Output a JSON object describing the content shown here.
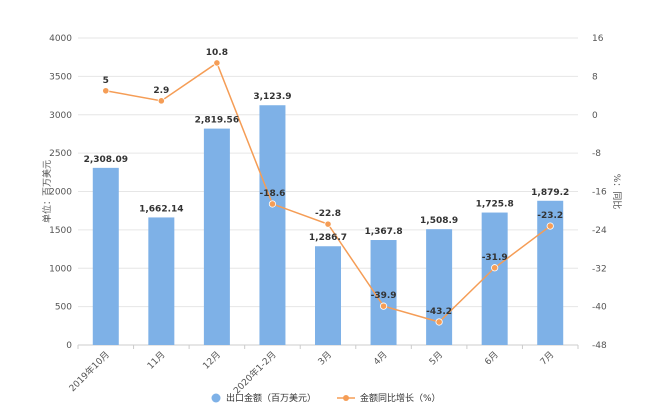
{
  "chart_data": {
    "type": "bar",
    "categories": [
      "2019年10月",
      "11月",
      "12月",
      "2020年1-2月",
      "3月",
      "4月",
      "5月",
      "6月",
      "7月"
    ],
    "series": [
      {
        "name": "出口金额（百万美元）",
        "type": "bar",
        "axis": "left",
        "color": "#7eb1e7",
        "values": [
          2308.09,
          1662.14,
          2819.56,
          3123.9,
          1286.7,
          1367.8,
          1508.9,
          1725.8,
          1879.2
        ],
        "labels": [
          "2,308.09",
          "1,662.14",
          "2,819.56",
          "3,123.9",
          "1,286.7",
          "1,367.8",
          "1,508.9",
          "1,725.8",
          "1,879.2"
        ]
      },
      {
        "name": "金额同比增长（%）",
        "type": "line",
        "axis": "right",
        "color": "#f59d56",
        "values": [
          5,
          2.9,
          10.8,
          -18.6,
          -22.8,
          -39.9,
          -43.2,
          -31.9,
          -23.2
        ],
        "labels": [
          "5",
          "2.9",
          "10.8",
          "-18.6",
          "-22.8",
          "-39.9",
          "-43.2",
          "-31.9",
          "-23.2"
        ]
      }
    ],
    "ylabel_left": "单位：百万美元",
    "ylabel_right": "%：同比",
    "ylim_left": [
      0,
      4000
    ],
    "ylim_right": [
      -48,
      16
    ],
    "yticks_left": [
      "0",
      "500",
      "1000",
      "1500",
      "2000",
      "2500",
      "3000",
      "3500",
      "4000"
    ],
    "yticks_right": [
      "-48",
      "-40",
      "-32",
      "-24",
      "-16",
      "-8",
      "0",
      "8",
      "16"
    ],
    "legend_position": "bottom",
    "grid": true
  },
  "colors": {
    "bar": "#7eb1e7",
    "line": "#f59d56",
    "grid": "#e6e6e6",
    "axis": "#cccccc"
  }
}
